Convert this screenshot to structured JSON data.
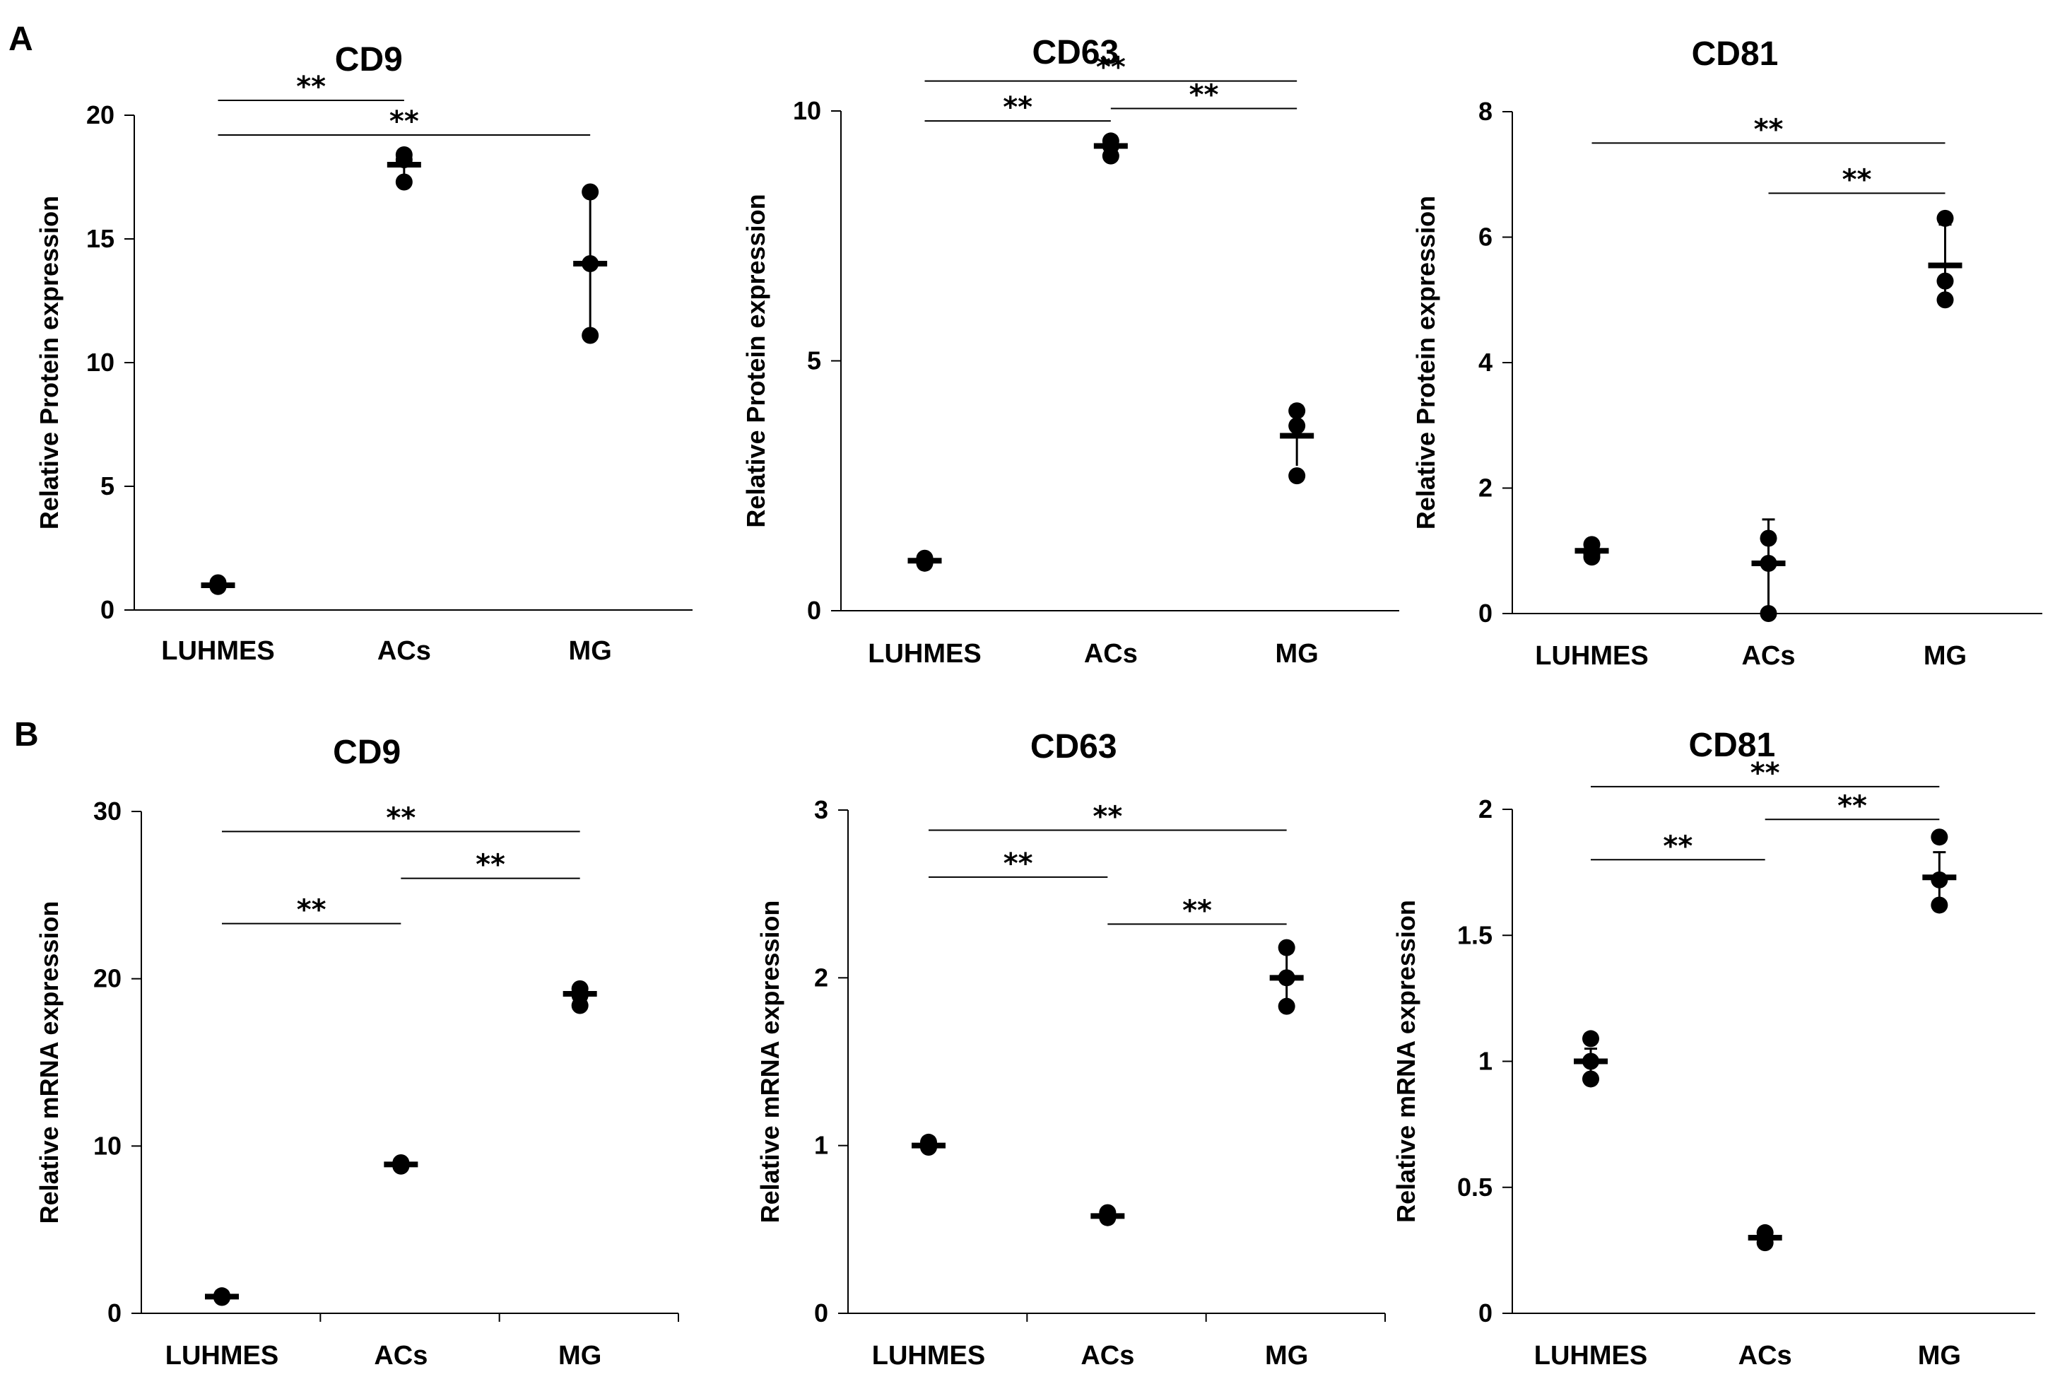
{
  "panel_labels": [
    "A",
    "B"
  ],
  "chart_data": [
    {
      "type": "scatter",
      "title": "CD9",
      "ylabel": "Relative Protein expression",
      "xlabel": "",
      "categories": [
        "LUHMES",
        "ACs",
        "MG"
      ],
      "ylim": [
        0,
        20
      ],
      "yticks": [
        0,
        5,
        10,
        15,
        20
      ],
      "points": [
        [
          1.0,
          1.1,
          0.95
        ],
        [
          18.4,
          17.3,
          18.2
        ],
        [
          16.9,
          14.0,
          11.1
        ]
      ],
      "mean": [
        1.0,
        18.0,
        14.0
      ],
      "err": [
        0.1,
        0.6,
        2.9
      ],
      "significance": [
        {
          "from": 0,
          "to": 1,
          "y": 20.6,
          "label": "**"
        },
        {
          "from": 0,
          "to": 2,
          "y": 19.2,
          "label": "**"
        }
      ]
    },
    {
      "type": "scatter",
      "title": "CD63",
      "ylabel": "Relative Protein expression",
      "xlabel": "",
      "categories": [
        "LUHMES",
        "ACs",
        "MG"
      ],
      "ylim": [
        0,
        10
      ],
      "yticks": [
        0,
        5,
        10
      ],
      "points": [
        [
          1.05,
          0.95,
          1.0
        ],
        [
          9.4,
          9.1,
          9.3
        ],
        [
          4.0,
          3.7,
          2.7
        ]
      ],
      "mean": [
        1.0,
        9.3,
        3.5
      ],
      "err": [
        0.05,
        0.15,
        0.6
      ],
      "significance": [
        {
          "from": 0,
          "to": 2,
          "y": 10.6,
          "label": "**"
        },
        {
          "from": 0,
          "to": 1,
          "y": 9.8,
          "label": "**"
        },
        {
          "from": 1,
          "to": 2,
          "y": 10.05,
          "label": "**"
        }
      ]
    },
    {
      "type": "scatter",
      "title": "CD81",
      "ylabel": "Relative Protein expression",
      "xlabel": "",
      "categories": [
        "LUHMES",
        "ACs",
        "MG"
      ],
      "ylim": [
        0,
        8
      ],
      "yticks": [
        0,
        2,
        4,
        6,
        8
      ],
      "points": [
        [
          1.1,
          0.95,
          0.9
        ],
        [
          1.2,
          0.0,
          0.8
        ],
        [
          6.3,
          5.3,
          5.0
        ]
      ],
      "mean": [
        1.0,
        0.8,
        5.55
      ],
      "err": [
        0.1,
        0.7,
        0.65
      ],
      "significance": [
        {
          "from": 0,
          "to": 2,
          "y": 7.5,
          "label": "**"
        },
        {
          "from": 1,
          "to": 2,
          "y": 6.7,
          "label": "**"
        }
      ]
    },
    {
      "type": "scatter",
      "title": "CD9",
      "ylabel": "Relative mRNA expression",
      "xlabel": "",
      "categories": [
        "LUHMES",
        "ACs",
        "MG"
      ],
      "ylim": [
        0,
        30
      ],
      "yticks": [
        0,
        10,
        20,
        30
      ],
      "points": [
        [
          1.0,
          1.05,
          0.95
        ],
        [
          8.9,
          9.0,
          8.8
        ],
        [
          19.4,
          18.4,
          19.0
        ]
      ],
      "mean": [
        1.0,
        8.9,
        19.1
      ],
      "err": [
        0.05,
        0.1,
        0.4
      ],
      "significance": [
        {
          "from": 0,
          "to": 2,
          "y": 28.8,
          "label": "**"
        },
        {
          "from": 1,
          "to": 2,
          "y": 26.0,
          "label": "**"
        },
        {
          "from": 0,
          "to": 1,
          "y": 23.3,
          "label": "**"
        }
      ]
    },
    {
      "type": "scatter",
      "title": "CD63",
      "ylabel": "Relative mRNA expression",
      "xlabel": "",
      "categories": [
        "LUHMES",
        "ACs",
        "MG"
      ],
      "ylim": [
        0,
        3
      ],
      "yticks": [
        0,
        1,
        2,
        3
      ],
      "points": [
        [
          1.0,
          1.02,
          0.99
        ],
        [
          0.6,
          0.57,
          0.58
        ],
        [
          2.18,
          2.0,
          1.83
        ]
      ],
      "mean": [
        1.0,
        0.58,
        2.0
      ],
      "err": [
        0.02,
        0.02,
        0.15
      ],
      "significance": [
        {
          "from": 0,
          "to": 2,
          "y": 2.88,
          "label": "**"
        },
        {
          "from": 0,
          "to": 1,
          "y": 2.6,
          "label": "**"
        },
        {
          "from": 1,
          "to": 2,
          "y": 2.32,
          "label": "**"
        }
      ]
    },
    {
      "type": "scatter",
      "title": "CD81",
      "ylabel": "Relative mRNA expression",
      "xlabel": "",
      "categories": [
        "LUHMES",
        "ACs",
        "MG"
      ],
      "ylim": [
        0,
        2
      ],
      "yticks": [
        0,
        0.5,
        1,
        1.5,
        2
      ],
      "ytick_labels": [
        "0",
        "0.5",
        "1",
        "1.5",
        "2"
      ],
      "points": [
        [
          1.09,
          0.93,
          1.0
        ],
        [
          0.32,
          0.28,
          0.3
        ],
        [
          1.89,
          1.62,
          1.72
        ]
      ],
      "mean": [
        1.0,
        0.3,
        1.73
      ],
      "err": [
        0.05,
        0.02,
        0.1
      ],
      "significance": [
        {
          "from": 0,
          "to": 2,
          "y": 2.09,
          "label": "**"
        },
        {
          "from": 1,
          "to": 2,
          "y": 1.96,
          "label": "**"
        },
        {
          "from": 0,
          "to": 1,
          "y": 1.8,
          "label": "**"
        }
      ]
    }
  ]
}
